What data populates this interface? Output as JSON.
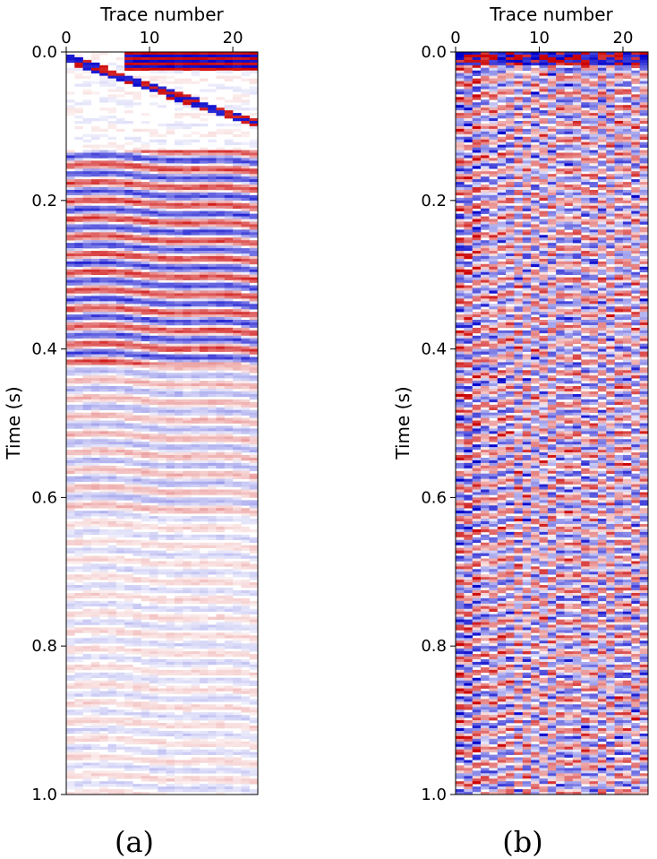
{
  "chart_data": [
    {
      "type": "heatmap",
      "panel_label": "(a)",
      "xlabel": "Trace number",
      "ylabel": "Time (s)",
      "xlim": [
        0,
        23
      ],
      "ylim": [
        1.0,
        0.0
      ],
      "xticks": [
        0,
        10,
        20
      ],
      "xtick_labels": [
        "0",
        "10",
        "20"
      ],
      "yticks": [
        0.0,
        0.2,
        0.4,
        0.6,
        0.8,
        1.0
      ],
      "ytick_labels": [
        "0.0",
        "0.2",
        "0.4",
        "0.6",
        "0.8",
        "1.0"
      ],
      "x_axis_position": "top",
      "colormap": "seismic",
      "colors": {
        "negative": "#0000cc",
        "zero": "#ffffff",
        "positive": "#cc0000"
      }
    },
    {
      "type": "heatmap",
      "panel_label": "(b)",
      "xlabel": "Trace number",
      "ylabel": "Time (s)",
      "xlim": [
        0,
        23
      ],
      "ylim": [
        1.0,
        0.0
      ],
      "xticks": [
        0,
        10,
        20
      ],
      "xtick_labels": [
        "0",
        "10",
        "20"
      ],
      "yticks": [
        0.0,
        0.2,
        0.4,
        0.6,
        0.8,
        1.0
      ],
      "ytick_labels": [
        "0.0",
        "0.2",
        "0.4",
        "0.6",
        "0.8",
        "1.0"
      ],
      "x_axis_position": "top",
      "colormap": "seismic",
      "colors": {
        "negative": "#0000cc",
        "zero": "#ffffff",
        "positive": "#cc0000"
      }
    }
  ]
}
